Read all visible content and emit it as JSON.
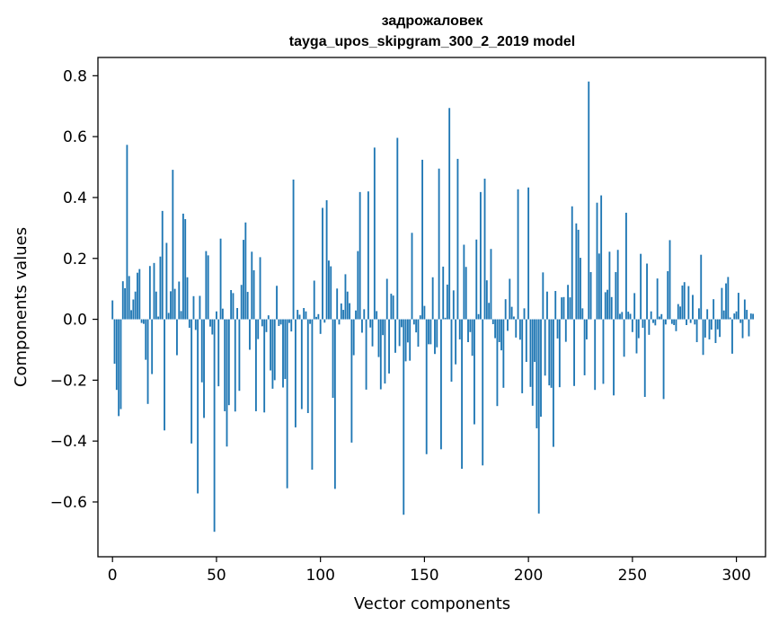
{
  "chart_data": {
    "type": "bar",
    "title": "задрожаловек",
    "subtitle": "tayga_upos_skipgram_300_2_2019 model",
    "xlabel": "Vector components",
    "ylabel": "Components values",
    "xlim": [
      -7,
      314
    ],
    "ylim": [
      -0.78,
      0.86
    ],
    "xticks": [
      0,
      50,
      100,
      150,
      200,
      250,
      300
    ],
    "xtick_labels": [
      "0",
      "50",
      "100",
      "150",
      "200",
      "250",
      "300"
    ],
    "yticks": [
      -0.6,
      -0.4,
      -0.2,
      0.0,
      0.2,
      0.4,
      0.6,
      0.8
    ],
    "ytick_labels": [
      "−0.6",
      "−0.4",
      "−0.2",
      "0.0",
      "0.2",
      "0.4",
      "0.6",
      "0.8"
    ],
    "bar_color": "#1f77b4",
    "values": [
      0.062,
      -0.146,
      -0.232,
      -0.318,
      -0.295,
      0.125,
      0.102,
      0.573,
      0.142,
      0.03,
      0.065,
      0.091,
      0.153,
      0.165,
      -0.012,
      -0.015,
      -0.133,
      -0.278,
      0.175,
      -0.18,
      0.185,
      0.091,
      0.009,
      0.206,
      0.356,
      -0.365,
      0.251,
      0.021,
      0.092,
      0.491,
      0.1,
      -0.118,
      0.124,
      0.027,
      0.347,
      0.329,
      0.138,
      -0.028,
      -0.408,
      0.076,
      -0.035,
      -0.572,
      0.077,
      -0.207,
      -0.324,
      0.224,
      0.21,
      -0.024,
      -0.05,
      -0.698,
      0.026,
      -0.22,
      0.265,
      0.035,
      -0.302,
      -0.418,
      -0.282,
      0.096,
      0.086,
      -0.303,
      0.037,
      -0.235,
      0.113,
      0.261,
      0.318,
      0.09,
      -0.1,
      0.222,
      0.161,
      -0.302,
      -0.065,
      0.204,
      -0.023,
      -0.306,
      -0.042,
      0.013,
      -0.168,
      -0.228,
      -0.2,
      0.11,
      -0.022,
      -0.017,
      -0.224,
      -0.196,
      -0.555,
      -0.012,
      -0.04,
      0.459,
      -0.355,
      0.031,
      0.015,
      -0.295,
      0.037,
      0.026,
      -0.308,
      -0.015,
      -0.494,
      0.127,
      0.008,
      0.017,
      -0.048,
      0.366,
      -0.011,
      0.391,
      0.193,
      0.174,
      -0.258,
      -0.557,
      0.101,
      -0.017,
      0.052,
      0.031,
      0.148,
      0.091,
      0.053,
      -0.405,
      -0.118,
      0.029,
      0.224,
      0.418,
      -0.044,
      0.033,
      -0.231,
      0.42,
      -0.027,
      -0.089,
      0.564,
      0.027,
      -0.124,
      -0.23,
      -0.052,
      -0.211,
      0.133,
      -0.178,
      0.084,
      0.078,
      -0.11,
      0.596,
      -0.088,
      -0.026,
      -0.642,
      -0.138,
      -0.076,
      -0.136,
      0.284,
      -0.017,
      -0.043,
      -0.09,
      0.013,
      0.524,
      0.044,
      -0.443,
      -0.082,
      -0.082,
      0.138,
      -0.114,
      -0.092,
      0.495,
      -0.427,
      0.173,
      0.005,
      0.114,
      0.694,
      -0.205,
      0.095,
      -0.148,
      0.527,
      -0.066,
      -0.491,
      0.245,
      0.172,
      -0.075,
      -0.042,
      -0.12,
      -0.345,
      0.262,
      0.017,
      0.418,
      -0.48,
      0.462,
      0.128,
      0.054,
      0.231,
      -0.016,
      -0.062,
      -0.285,
      -0.075,
      -0.102,
      -0.225,
      0.066,
      -0.038,
      0.133,
      0.041,
      0.009,
      -0.06,
      0.427,
      -0.067,
      -0.243,
      0.036,
      -0.14,
      0.433,
      -0.222,
      -0.284,
      -0.14,
      -0.358,
      -0.638,
      -0.32,
      0.154,
      -0.185,
      0.091,
      -0.217,
      -0.225,
      -0.419,
      0.093,
      -0.063,
      -0.223,
      0.072,
      0.073,
      -0.074,
      0.113,
      0.072,
      0.371,
      -0.219,
      0.315,
      0.294,
      0.202,
      0.036,
      -0.184,
      -0.066,
      0.781,
      0.155,
      0.0,
      -0.232,
      0.383,
      0.216,
      0.407,
      -0.212,
      0.089,
      0.097,
      0.222,
      0.073,
      -0.25,
      0.155,
      0.228,
      0.018,
      0.024,
      -0.123,
      0.35,
      0.025,
      0.018,
      -0.042,
      0.086,
      -0.112,
      -0.062,
      0.215,
      -0.028,
      -0.255,
      0.183,
      -0.051,
      0.026,
      -0.012,
      -0.02,
      0.134,
      0.009,
      0.017,
      -0.262,
      -0.017,
      0.158,
      0.26,
      -0.015,
      -0.019,
      -0.039,
      0.05,
      0.042,
      0.111,
      0.122,
      -0.019,
      0.109,
      -0.012,
      0.08,
      -0.017,
      -0.075,
      0.036,
      0.212,
      -0.117,
      -0.06,
      0.033,
      -0.066,
      -0.034,
      0.066,
      -0.078,
      -0.033,
      -0.058,
      0.103,
      0.029,
      0.118,
      0.139,
      0.006,
      -0.113,
      0.019,
      0.026,
      0.087,
      -0.012,
      -0.062,
      0.065,
      0.031,
      -0.056,
      0.019,
      0.018
    ]
  }
}
